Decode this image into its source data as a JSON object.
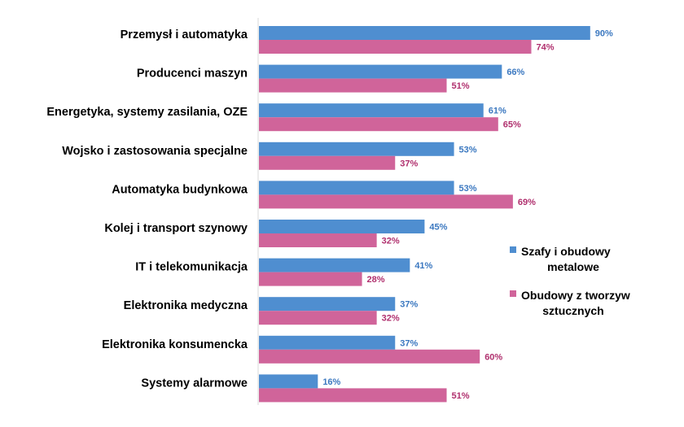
{
  "chart_data": {
    "type": "bar",
    "orientation": "horizontal",
    "categories": [
      "Przemysł i automatyka",
      "Producenci maszyn",
      "Energetyka, systemy zasilania, OZE",
      "Wojsko i zastosowania specjalne",
      "Automatyka budynkowa",
      "Kolej i transport szynowy",
      "IT i telekomunikacja",
      "Elektronika medyczna",
      "Elektronika konsumencka",
      "Systemy alarmowe"
    ],
    "series": [
      {
        "name": "Szafy i obudowy metalowe",
        "color": "#4f8ed0",
        "label_color": "#3b78c0",
        "values": [
          90,
          66,
          61,
          53,
          53,
          45,
          41,
          37,
          37,
          16
        ]
      },
      {
        "name": "Obudowy z tworzyw sztucznych",
        "color": "#d0649a",
        "label_color": "#b0306e",
        "values": [
          74,
          51,
          65,
          37,
          69,
          32,
          28,
          32,
          60,
          51
        ]
      }
    ],
    "value_suffix": "%",
    "xlim": [
      0,
      100
    ],
    "grid": false,
    "legend_position": "right",
    "legend": [
      {
        "lines": [
          "Szafy i obudowy",
          "metalowe"
        ]
      },
      {
        "lines": [
          "Obudowy z tworzyw",
          "sztucznych"
        ]
      }
    ]
  }
}
